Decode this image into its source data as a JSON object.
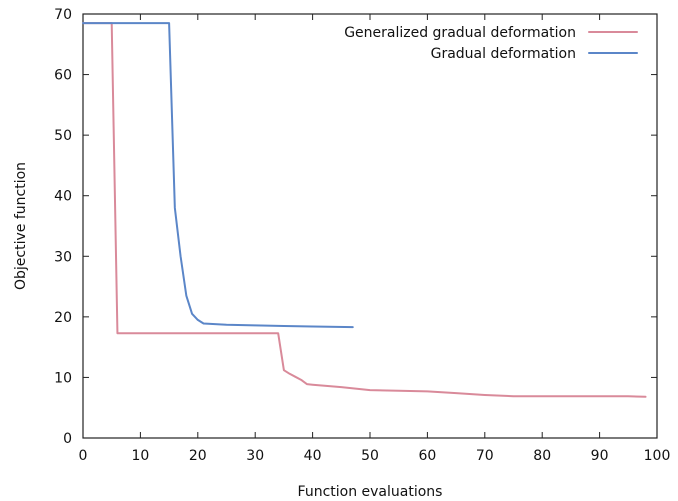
{
  "chart_data": {
    "type": "line",
    "title": "",
    "xlabel": "Function evaluations",
    "ylabel": "Objective function",
    "xlim": [
      0,
      100
    ],
    "ylim": [
      0,
      70
    ],
    "xticks": [
      0,
      10,
      20,
      30,
      40,
      50,
      60,
      70,
      80,
      90,
      100
    ],
    "yticks": [
      0,
      10,
      20,
      30,
      40,
      50,
      60,
      70
    ],
    "grid": false,
    "legend_position": "top-right",
    "series": [
      {
        "name": "Generalized gradual deformation",
        "color": "#d98a9a",
        "x": [
          0,
          5,
          6,
          10,
          15,
          20,
          25,
          30,
          34,
          35,
          36,
          37,
          38,
          39,
          40,
          45,
          50,
          55,
          60,
          65,
          70,
          75,
          80,
          85,
          90,
          95,
          98
        ],
        "y": [
          68.5,
          68.5,
          17.3,
          17.3,
          17.3,
          17.3,
          17.3,
          17.3,
          17.3,
          11.2,
          10.6,
          10.1,
          9.6,
          8.9,
          8.8,
          8.4,
          7.9,
          7.8,
          7.7,
          7.4,
          7.1,
          6.9,
          6.9,
          6.9,
          6.9,
          6.9,
          6.8
        ]
      },
      {
        "name": "Gradual deformation",
        "color": "#5b86c8",
        "x": [
          0,
          15,
          16,
          17,
          18,
          19,
          20,
          21,
          25,
          30,
          35,
          40,
          47
        ],
        "y": [
          68.5,
          68.5,
          38.0,
          30.0,
          23.5,
          20.5,
          19.5,
          18.9,
          18.7,
          18.6,
          18.5,
          18.4,
          18.3
        ]
      }
    ]
  }
}
